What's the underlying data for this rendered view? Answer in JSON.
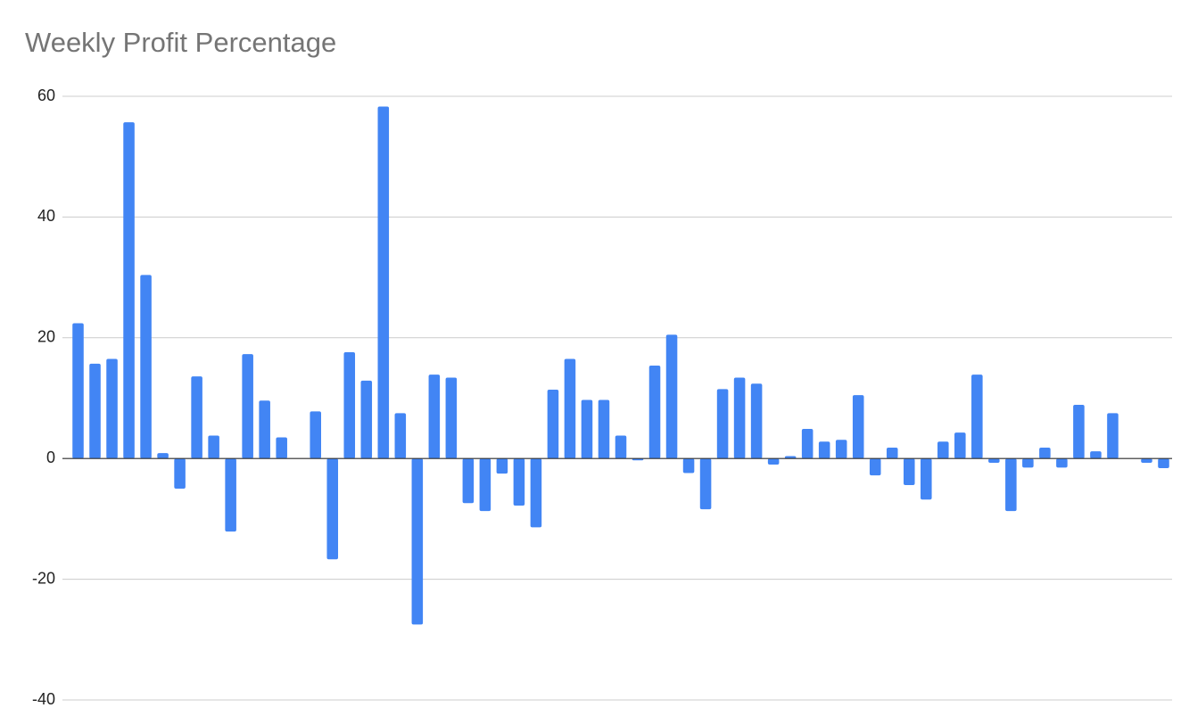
{
  "chart_data": {
    "type": "bar",
    "title": "Weekly Profit Percentage",
    "values": [
      22.4,
      15.7,
      16.5,
      55.7,
      30.4,
      0.9,
      -5.0,
      13.6,
      3.8,
      -12.1,
      17.3,
      9.6,
      3.5,
      0,
      7.8,
      -16.7,
      17.6,
      12.9,
      58.3,
      7.5,
      -27.5,
      13.9,
      13.4,
      -7.4,
      -8.7,
      -2.5,
      -7.8,
      -11.4,
      11.4,
      16.5,
      9.7,
      9.7,
      3.8,
      -0.3,
      15.4,
      20.5,
      -2.4,
      -8.4,
      11.5,
      13.4,
      12.4,
      -1.0,
      0.4,
      4.9,
      2.8,
      3.1,
      10.5,
      -2.8,
      1.8,
      -4.4,
      -6.8,
      2.8,
      4.3,
      13.9,
      -0.7,
      -8.7,
      -1.5,
      1.8,
      -1.5,
      8.9,
      1.2,
      7.5,
      0,
      -0.7,
      -1.6
    ],
    "color": "#4285f4",
    "ylim": [
      -40,
      60
    ],
    "yticks": [
      -40,
      -20,
      0,
      20,
      40,
      60
    ],
    "grid": true
  }
}
